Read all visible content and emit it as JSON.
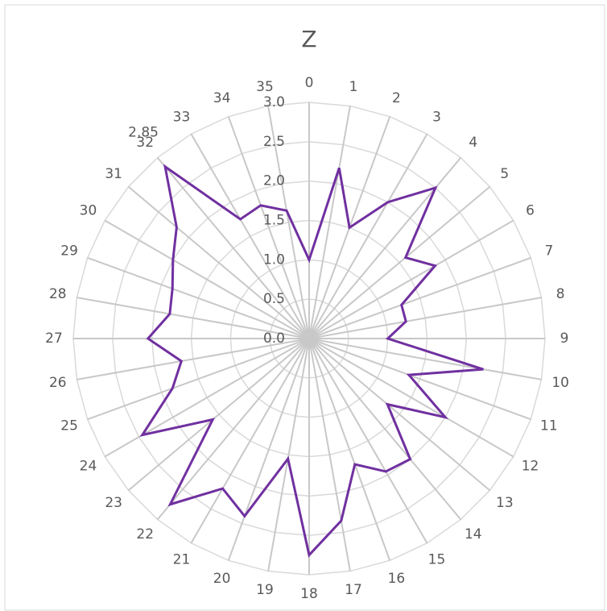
{
  "chart_data": {
    "type": "radar",
    "title": "Z",
    "categories": [
      "0",
      "1",
      "2",
      "3",
      "4",
      "5",
      "6",
      "7",
      "8",
      "9",
      "10",
      "11",
      "12",
      "13",
      "14",
      "15",
      "16",
      "17",
      "18",
      "19",
      "20",
      "21",
      "22",
      "23",
      "24",
      "25",
      "26",
      "27",
      "28",
      "29",
      "30",
      "31",
      "32",
      "33",
      "34",
      "35"
    ],
    "series": [
      {
        "name": "Z",
        "color": "#7030a0",
        "values": [
          1.0,
          2.2,
          1.5,
          2.0,
          2.5,
          1.6,
          1.85,
          1.25,
          1.25,
          1.0,
          2.25,
          1.35,
          2.0,
          1.3,
          2.0,
          1.95,
          1.7,
          2.35,
          2.75,
          1.55,
          2.4,
          2.2,
          2.75,
          1.6,
          2.45,
          1.85,
          1.65,
          2.05,
          1.8,
          1.85,
          2.0,
          2.2,
          2.85,
          1.75,
          1.8,
          1.65
        ]
      }
    ],
    "labeled_points": [
      32
    ],
    "ylim": [
      0,
      3.0
    ],
    "yticks": [
      {
        "value": 0,
        "label": "0.0"
      },
      0.5,
      {
        "value": 1,
        "label": "1.0"
      },
      1.5,
      {
        "value": 2,
        "label": "2.0"
      },
      2.5,
      {
        "value": 3,
        "label": "3.0"
      }
    ],
    "grid": true
  }
}
